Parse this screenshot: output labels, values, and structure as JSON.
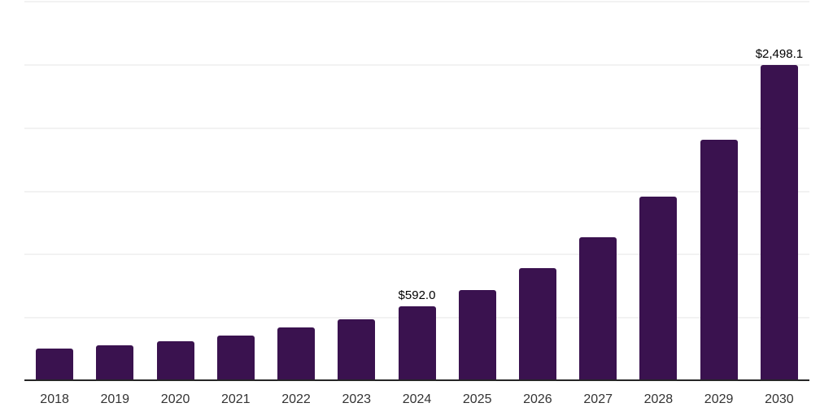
{
  "chart_data": {
    "type": "bar",
    "title": "",
    "xlabel": "",
    "ylabel": "",
    "categories": [
      "2018",
      "2019",
      "2020",
      "2021",
      "2022",
      "2023",
      "2024",
      "2025",
      "2026",
      "2027",
      "2028",
      "2029",
      "2030"
    ],
    "values": [
      257,
      284,
      315,
      360,
      424,
      488,
      592.0,
      722,
      895,
      1135,
      1457,
      1911,
      2498.1
    ],
    "value_labels": [
      null,
      null,
      null,
      null,
      null,
      null,
      "$592.0",
      null,
      null,
      null,
      null,
      null,
      "$2,498.1"
    ],
    "ylim": [
      0,
      3000
    ],
    "ygrid_step": 500,
    "grid": true,
    "legend": false,
    "ytick_labels_shown": false,
    "colors": {
      "bar": "#3a124f",
      "axis": "#262626",
      "gridline": "#f2f2f2",
      "tick_label": "#333333",
      "data_label": "#000000",
      "background": "#ffffff"
    }
  }
}
